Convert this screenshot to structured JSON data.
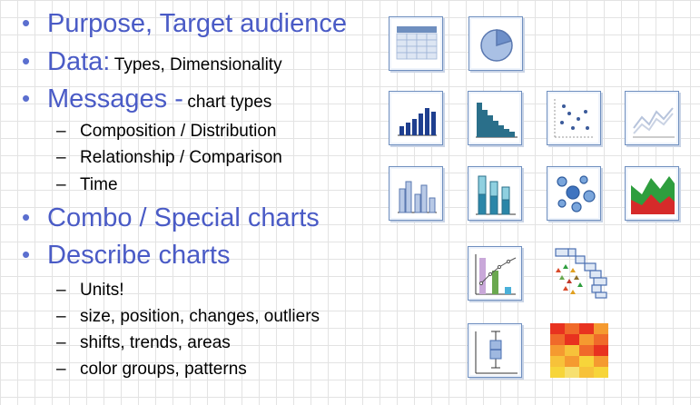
{
  "bullets": [
    {
      "main": "Purpose, Target audience",
      "detail": ""
    },
    {
      "main": "Data:",
      "detail": "Types, Dimensionality"
    },
    {
      "main": "Messages -",
      "detail": "chart types"
    },
    {
      "main": "Combo / Special charts",
      "detail": ""
    },
    {
      "main": "Describe charts",
      "detail": ""
    }
  ],
  "sub_messages": [
    "Composition / Distribution",
    "Relationship / Comparison",
    "Time"
  ],
  "sub_describe": [
    "Units!",
    "size, position, changes, outliers",
    "shifts, trends, areas",
    "color groups, patterns"
  ],
  "bullet_glyph": "•",
  "dash_glyph": "–",
  "icons": [
    "table-icon",
    "pie-chart-icon",
    "column-chart-icon",
    "histogram-icon",
    "scatter-plot-icon",
    "line-chart-icon",
    "clustered-column-icon",
    "stacked-column-icon",
    "bubble-chart-icon",
    "area-chart-icon",
    "combo-chart-icon",
    "pyramid-chart-icon",
    "box-plot-icon",
    "heatmap-icon"
  ],
  "colors": {
    "heading": "#4a5bc6",
    "bullet": "#5b6fcf",
    "bar_dark": "#1f3f8f",
    "teal": "#2a7f8f",
    "area_green": "#2e9e3e",
    "area_red": "#d62a2a",
    "heat_red": "#e8321f",
    "heat_yellow": "#f7d53a"
  }
}
